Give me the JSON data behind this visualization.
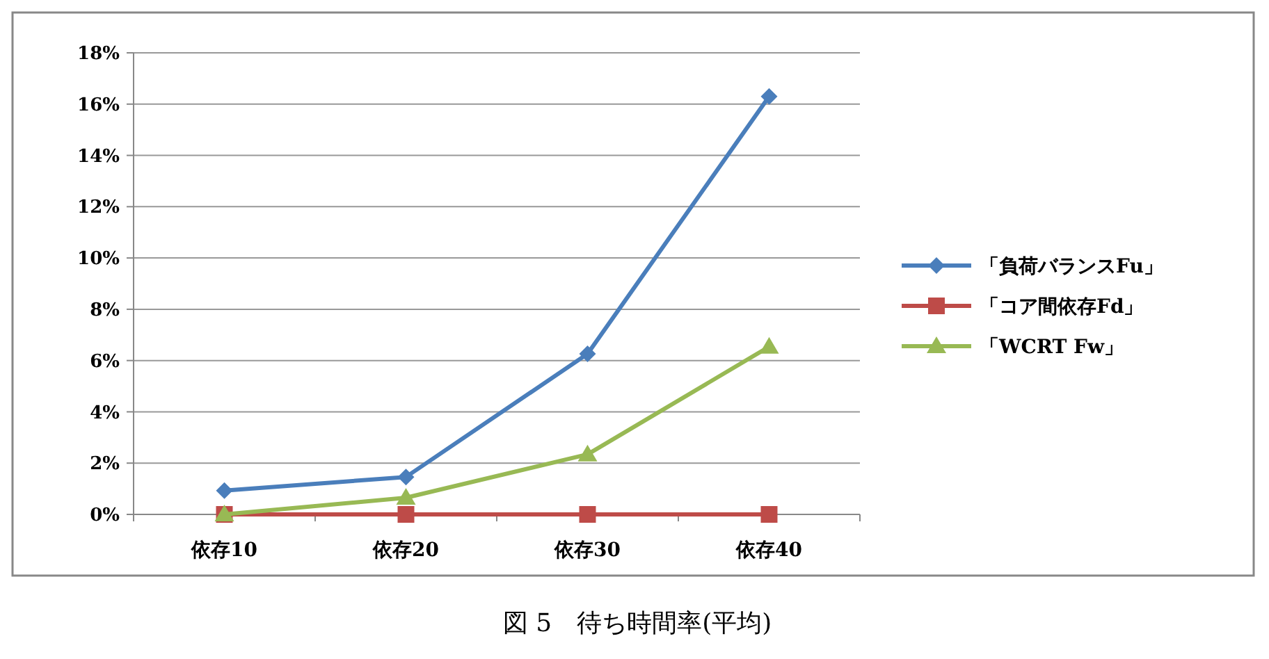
{
  "chart_data": {
    "type": "line",
    "title": "図 5　待ち時間率(平均)",
    "categories": [
      "依存10",
      "依存20",
      "依存30",
      "依存40"
    ],
    "series": [
      {
        "name": "「負荷バランスFu」",
        "color": "#4a7ebb",
        "values": [
          0.93,
          1.46,
          6.26,
          16.3
        ],
        "marker": "diamond"
      },
      {
        "name": "「コア間依存Fd」",
        "color": "#be4b48",
        "values": [
          0,
          0,
          0,
          0
        ],
        "marker": "square"
      },
      {
        "name": "「WCRT Fw」",
        "color": "#98b954",
        "values": [
          0,
          0.65,
          2.34,
          6.54
        ],
        "marker": "triangle"
      }
    ],
    "ylim": [
      0,
      18
    ],
    "yticks": [
      {
        "value": 0,
        "label": "0%"
      },
      {
        "value": 2,
        "label": "2%"
      },
      {
        "value": 4,
        "label": "4%"
      },
      {
        "value": 6,
        "label": "6%"
      },
      {
        "value": 8,
        "label": "8%"
      },
      {
        "value": 10,
        "label": "10%"
      },
      {
        "value": 12,
        "label": "12%"
      },
      {
        "value": 14,
        "label": "14%"
      },
      {
        "value": 16,
        "label": "16%"
      },
      {
        "value": 18,
        "label": "18%"
      }
    ],
    "grid": "y",
    "legend": "right",
    "line_style": "solid"
  }
}
